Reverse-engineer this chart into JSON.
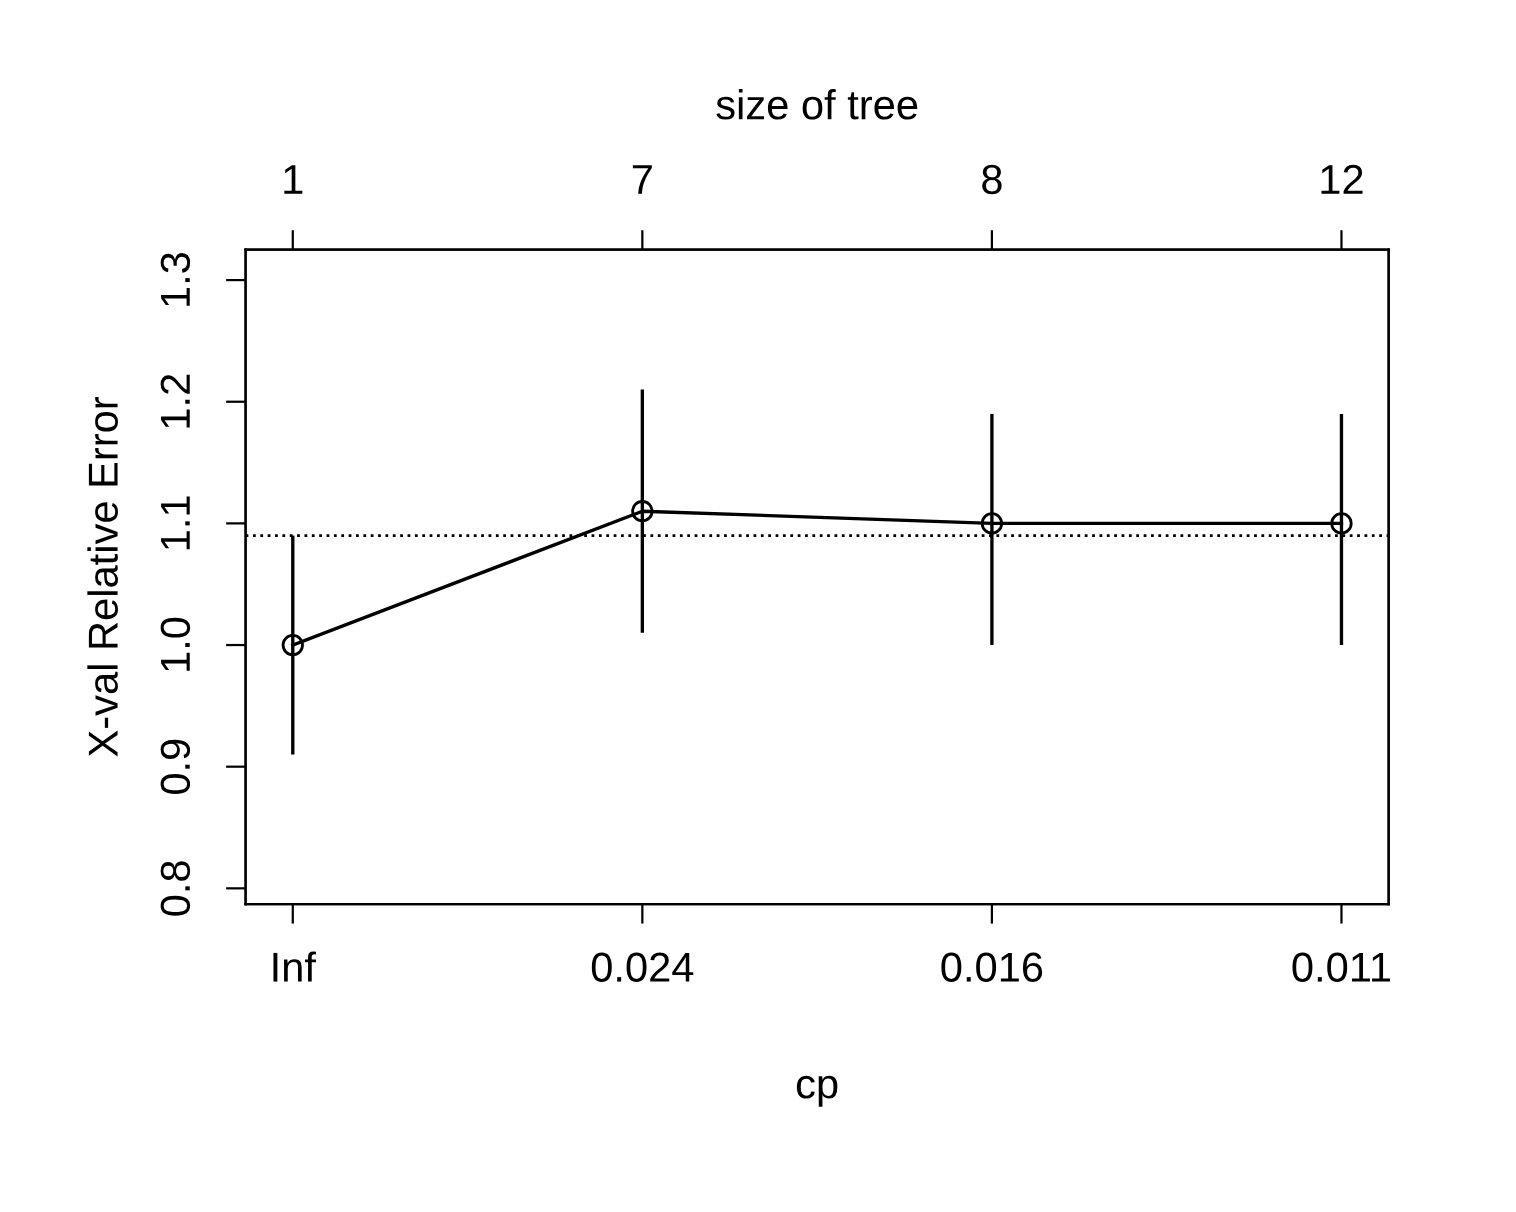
{
  "chart_data": {
    "type": "line",
    "xlabel": "cp",
    "ylabel": "X-val Relative Error",
    "x2label": "size of tree",
    "categories": [
      "Inf",
      "0.024",
      "0.016",
      "0.011"
    ],
    "series": [
      {
        "color": "#000000",
        "values": [
          1.0,
          1.11,
          1.1,
          1.1
        ],
        "errors": [
          [
            0.91,
            1.09
          ],
          [
            1.01,
            1.21
          ],
          [
            1.0,
            1.19
          ],
          [
            1.0,
            1.19
          ]
        ]
      }
    ],
    "ylim": [
      0.787,
      1.325
    ],
    "yticks": [
      {
        "value": 0.8,
        "label": "0.8"
      },
      {
        "value": 0.9,
        "label": "0.9"
      },
      {
        "value": 1.0,
        "label": "1.0"
      },
      {
        "value": 1.1,
        "label": "1.1"
      },
      {
        "value": 1.2,
        "label": "1.2"
      },
      {
        "value": 1.3,
        "label": "1.3"
      }
    ],
    "annotations": [
      "1",
      "7",
      "8",
      "12"
    ],
    "ref_lines": [
      {
        "axis": "y",
        "value": 1.09,
        "line_style": "dotted",
        "color": "#000000"
      }
    ],
    "marker": "circle",
    "line_style": "solid",
    "grid": false,
    "legend": false
  }
}
